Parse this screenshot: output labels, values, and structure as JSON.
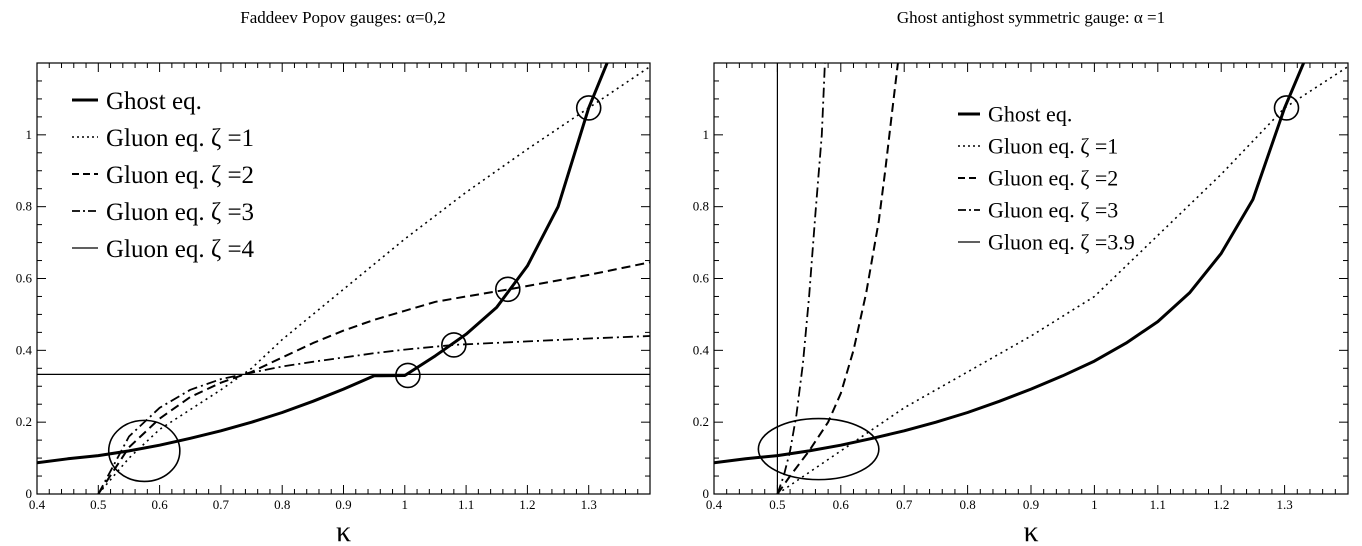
{
  "chart_data": [
    {
      "type": "line",
      "title": "Faddeev Popov gauges: α=0,2",
      "xlabel": "κ",
      "ylabel": "",
      "xlim": [
        0.4,
        1.4
      ],
      "ylim": [
        0,
        1.2
      ],
      "grid": false,
      "legend_position": "top-left",
      "xticks": [
        "0.4",
        "0.5",
        "0.6",
        "0.7",
        "0.8",
        "0.9",
        "1",
        "1.1",
        "1.2",
        "1.3"
      ],
      "yticks": [
        "0",
        "0.2",
        "0.4",
        "0.6",
        "0.8",
        "1"
      ],
      "series": [
        {
          "name": "Ghost eq.",
          "style": "thick",
          "color": "#000000",
          "points": [
            [
              0.4,
              0.087
            ],
            [
              0.45,
              0.098
            ],
            [
              0.5,
              0.107
            ],
            [
              0.55,
              0.12
            ],
            [
              0.6,
              0.136
            ],
            [
              0.65,
              0.155
            ],
            [
              0.7,
              0.176
            ],
            [
              0.75,
              0.2
            ],
            [
              0.8,
              0.227
            ],
            [
              0.85,
              0.258
            ],
            [
              0.9,
              0.292
            ],
            [
              0.95,
              0.329
            ],
            [
              1.0,
              0.33
            ],
            [
              1.05,
              0.385
            ],
            [
              1.1,
              0.445
            ],
            [
              1.15,
              0.52
            ],
            [
              1.2,
              0.635
            ],
            [
              1.25,
              0.8
            ],
            [
              1.3,
              1.075
            ],
            [
              1.33,
              1.2
            ]
          ]
        },
        {
          "name": "Gluon eq. ζ =1",
          "style": "dotted",
          "color": "#000000",
          "points": [
            [
              0.5,
              0.0
            ],
            [
              0.55,
              0.1
            ],
            [
              0.6,
              0.18
            ],
            [
              0.65,
              0.235
            ],
            [
              0.7,
              0.29
            ],
            [
              0.75,
              0.35
            ],
            [
              0.8,
              0.43
            ],
            [
              0.85,
              0.5
            ],
            [
              0.9,
              0.57
            ],
            [
              0.95,
              0.64
            ],
            [
              1.0,
              0.71
            ],
            [
              1.1,
              0.84
            ],
            [
              1.2,
              0.96
            ],
            [
              1.3,
              1.075
            ],
            [
              1.4,
              1.19
            ]
          ]
        },
        {
          "name": "Gluon eq. ζ =2",
          "style": "dashed",
          "color": "#000000",
          "points": [
            [
              0.5,
              0.0
            ],
            [
              0.55,
              0.13
            ],
            [
              0.6,
              0.21
            ],
            [
              0.65,
              0.27
            ],
            [
              0.7,
              0.31
            ],
            [
              0.75,
              0.34
            ],
            [
              0.8,
              0.38
            ],
            [
              0.85,
              0.42
            ],
            [
              0.9,
              0.455
            ],
            [
              0.95,
              0.485
            ],
            [
              1.0,
              0.51
            ],
            [
              1.05,
              0.535
            ],
            [
              1.1,
              0.55
            ],
            [
              1.17,
              0.57
            ],
            [
              1.3,
              0.61
            ],
            [
              1.4,
              0.645
            ]
          ]
        },
        {
          "name": "Gluon eq. ζ =3",
          "style": "dashdot",
          "color": "#000000",
          "points": [
            [
              0.5,
              0.0
            ],
            [
              0.55,
              0.16
            ],
            [
              0.6,
              0.24
            ],
            [
              0.65,
              0.29
            ],
            [
              0.7,
              0.32
            ],
            [
              0.75,
              0.338
            ],
            [
              0.8,
              0.355
            ],
            [
              0.85,
              0.368
            ],
            [
              0.9,
              0.38
            ],
            [
              0.95,
              0.392
            ],
            [
              1.0,
              0.402
            ],
            [
              1.08,
              0.415
            ],
            [
              1.2,
              0.425
            ],
            [
              1.3,
              0.433
            ],
            [
              1.4,
              0.44
            ]
          ]
        },
        {
          "name": "Gluon eq. ζ =4",
          "style": "thin",
          "color": "#000000",
          "points": [
            [
              0.4,
              0.333
            ],
            [
              1.4,
              0.333
            ]
          ]
        }
      ],
      "markers": [
        {
          "shape": "circle",
          "x": 1.3,
          "y": 1.075
        },
        {
          "shape": "circle",
          "x": 1.168,
          "y": 0.57
        },
        {
          "shape": "circle",
          "x": 1.08,
          "y": 0.415
        },
        {
          "shape": "circle",
          "x": 1.005,
          "y": 0.33
        },
        {
          "shape": "ellipse",
          "x": 0.575,
          "y": 0.12,
          "rx": 0.058,
          "ry": 0.085
        }
      ]
    },
    {
      "type": "line",
      "title": "Ghost antighost symmetric gauge: α =1",
      "xlabel": "κ",
      "ylabel": "",
      "xlim": [
        0.4,
        1.4
      ],
      "ylim": [
        0,
        1.2
      ],
      "grid": false,
      "legend_position": "top-left",
      "xticks": [
        "0.4",
        "0.5",
        "0.6",
        "0.7",
        "0.8",
        "0.9",
        "1",
        "1.1",
        "1.2",
        "1.3"
      ],
      "yticks": [
        "0",
        "0.2",
        "0.4",
        "0.6",
        "0.8",
        "1"
      ],
      "series": [
        {
          "name": "Ghost eq.",
          "style": "thick",
          "color": "#000000",
          "points": [
            [
              0.4,
              0.087
            ],
            [
              0.45,
              0.098
            ],
            [
              0.5,
              0.107
            ],
            [
              0.55,
              0.12
            ],
            [
              0.6,
              0.136
            ],
            [
              0.65,
              0.155
            ],
            [
              0.7,
              0.176
            ],
            [
              0.75,
              0.2
            ],
            [
              0.8,
              0.227
            ],
            [
              0.85,
              0.258
            ],
            [
              0.9,
              0.292
            ],
            [
              0.95,
              0.329
            ],
            [
              1.0,
              0.37
            ],
            [
              1.05,
              0.42
            ],
            [
              1.1,
              0.48
            ],
            [
              1.15,
              0.56
            ],
            [
              1.2,
              0.67
            ],
            [
              1.25,
              0.82
            ],
            [
              1.3,
              1.075
            ],
            [
              1.33,
              1.2
            ]
          ]
        },
        {
          "name": "Gluon eq. ζ =1",
          "style": "dotted",
          "color": "#000000",
          "points": [
            [
              0.5,
              0.0
            ],
            [
              0.55,
              0.06
            ],
            [
              0.6,
              0.12
            ],
            [
              0.65,
              0.18
            ],
            [
              0.7,
              0.24
            ],
            [
              0.8,
              0.34
            ],
            [
              0.9,
              0.44
            ],
            [
              1.0,
              0.55
            ],
            [
              1.1,
              0.72
            ],
            [
              1.2,
              0.89
            ],
            [
              1.3,
              1.075
            ],
            [
              1.4,
              1.19
            ]
          ]
        },
        {
          "name": "Gluon eq. ζ =2",
          "style": "dashed",
          "color": "#000000",
          "points": [
            [
              0.5,
              0.0
            ],
            [
              0.52,
              0.05
            ],
            [
              0.55,
              0.12
            ],
            [
              0.58,
              0.2
            ],
            [
              0.6,
              0.28
            ],
            [
              0.62,
              0.4
            ],
            [
              0.64,
              0.56
            ],
            [
              0.66,
              0.76
            ],
            [
              0.67,
              0.9
            ],
            [
              0.68,
              1.05
            ],
            [
              0.69,
              1.2
            ]
          ]
        },
        {
          "name": "Gluon eq. ζ =3",
          "style": "dashdot",
          "color": "#000000",
          "points": [
            [
              0.5,
              0.0
            ],
            [
              0.51,
              0.05
            ],
            [
              0.52,
              0.12
            ],
            [
              0.53,
              0.22
            ],
            [
              0.54,
              0.36
            ],
            [
              0.55,
              0.55
            ],
            [
              0.56,
              0.78
            ],
            [
              0.57,
              1.0
            ],
            [
              0.575,
              1.2
            ]
          ]
        },
        {
          "name": "Gluon eq. ζ =3.9",
          "style": "thin",
          "color": "#000000",
          "points": [
            [
              0.5,
              0.0
            ],
            [
              0.5,
              1.2
            ]
          ]
        }
      ],
      "markers": [
        {
          "shape": "circle",
          "x": 1.303,
          "y": 1.075
        },
        {
          "shape": "ellipse",
          "x": 0.565,
          "y": 0.125,
          "rx": 0.095,
          "ry": 0.085
        }
      ]
    }
  ]
}
